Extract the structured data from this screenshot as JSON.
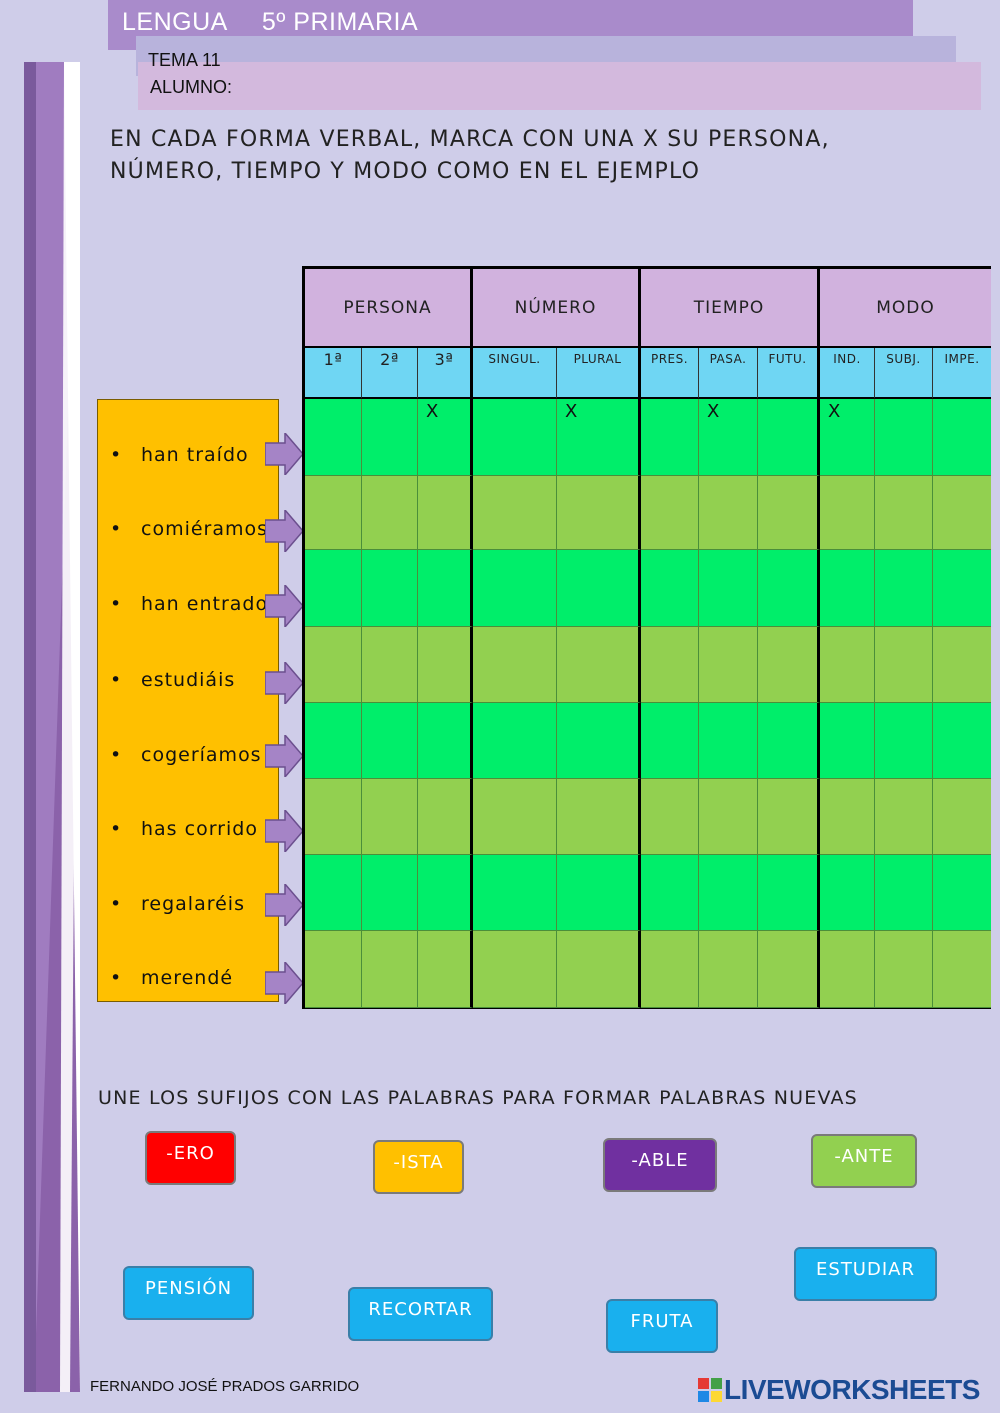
{
  "header": {
    "subject": "LENGUA",
    "grade": "5º PRIMARIA",
    "topic": "TEMA 11",
    "student_label": "ALUMNO:"
  },
  "instructions": {
    "part1": "EN CADA FORMA VERBAL, MARCA CON UNA X SU PERSONA, NÚMERO, TIEMPO Y MODO COMO EN EL EJEMPLO",
    "part2": "UNE LOS SUFIJOS CON LAS PALABRAS PARA FORMAR PALABRAS NUEVAS"
  },
  "table": {
    "groups": [
      "PERSONA",
      "NÚMERO",
      "TIEMPO",
      "MODO"
    ],
    "columns": [
      "1ª",
      "2ª",
      "3ª",
      "SINGUL.",
      "PLURAL",
      "PRES.",
      "PASA.",
      "FUTU.",
      "IND.",
      "SUBJ.",
      "IMPE."
    ],
    "example_mark": "X",
    "example_marked_columns": [
      2,
      4,
      6,
      8
    ],
    "row_colors": [
      "#00ee6a",
      "#92d050"
    ]
  },
  "verbs": [
    "han traído",
    "comiéramos",
    "han entrado",
    "estudiáis",
    "cogeríamos",
    "has corrido",
    "regalaréis",
    "merendé"
  ],
  "suffixes": [
    {
      "label": "-ERO",
      "color": "#ff0000"
    },
    {
      "label": "-ISTA",
      "color": "#ffc000"
    },
    {
      "label": "-ABLE",
      "color": "#7030a0"
    },
    {
      "label": "-ANTE",
      "color": "#92d050"
    }
  ],
  "words": [
    "PENSIÓN",
    "RECORTAR",
    "FRUTA",
    "ESTUDIAR"
  ],
  "footer": {
    "author": "FERNANDO JOSÉ PRADOS GARRIDO",
    "brand": "LIVEWORKSHEETS"
  }
}
